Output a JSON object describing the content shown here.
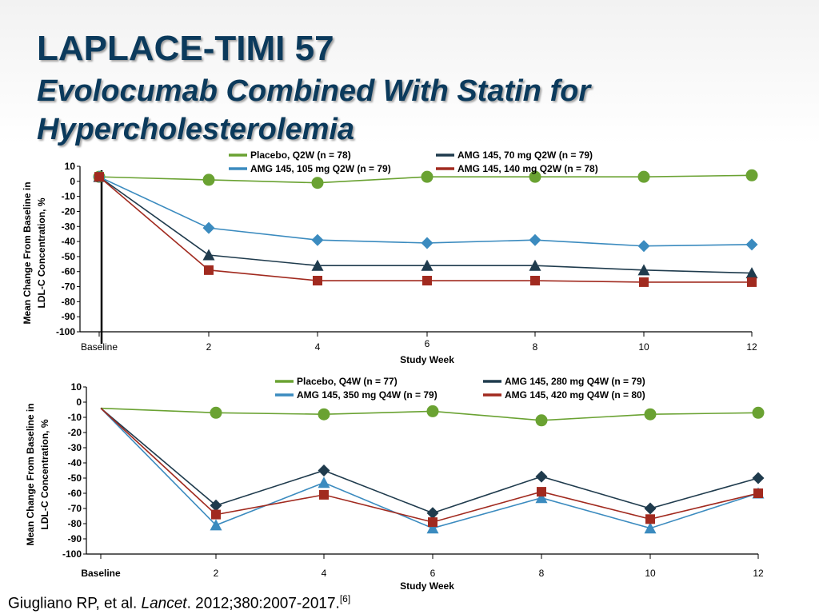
{
  "slide": {
    "title": "LAPLACE-TIMI 57",
    "subtitle": "Evolocumab Combined With Statin for Hypercholesterolemia",
    "citation_authors": "Giugliano RP, et al.",
    "citation_journal": "Lancet",
    "citation_details": ". 2012;380:2007-2017.",
    "citation_ref": "[6]"
  },
  "chart_data": [
    {
      "type": "line",
      "ylabel_line1": "Mean Change From Baseline in",
      "ylabel_line2": "LDL-C Concentration, %",
      "xlabel": "Study Week",
      "x": [
        0,
        2,
        4,
        6,
        8,
        10,
        12
      ],
      "x_tick_labels": [
        "Baseline",
        "2",
        "4",
        "6",
        "8",
        "10",
        "12"
      ],
      "y_ticks": [
        10,
        0,
        -10,
        -20,
        -30,
        -40,
        -50,
        -60,
        -70,
        -80,
        -90,
        -100
      ],
      "ylim": [
        -100,
        10
      ],
      "legend": [
        {
          "series": 0,
          "label": "Placebo, Q2W (n = 78)"
        },
        {
          "series": 1,
          "label": "AMG 145, 70 mg Q2W (n = 79)"
        },
        {
          "series": 2,
          "label": "AMG 145, 105 mg Q2W (n = 79)"
        },
        {
          "series": 3,
          "label": "AMG 145, 140 mg Q2W (n = 78)"
        }
      ],
      "series": [
        {
          "color": "#6aa232",
          "marker": "circle",
          "values": [
            3,
            1,
            -1,
            3,
            3,
            3,
            4
          ]
        },
        {
          "color": "#1f3b4d",
          "marker": "triangle",
          "values": [
            3,
            -49,
            -56,
            -56,
            -56,
            -59,
            -61
          ]
        },
        {
          "color": "#3b8bbf",
          "marker": "diamond",
          "values": [
            3,
            -31,
            -39,
            -41,
            -39,
            -43,
            -42
          ]
        },
        {
          "color": "#a12a1f",
          "marker": "square",
          "values": [
            3,
            -59,
            -66,
            -66,
            -66,
            -67,
            -67
          ]
        }
      ]
    },
    {
      "type": "line",
      "ylabel_line1": "Mean Change From Baseline in",
      "ylabel_line2": "LDL-C Concentration, %",
      "xlabel": "Study Week",
      "x": [
        0,
        2,
        4,
        6,
        8,
        10,
        12
      ],
      "x_tick_labels": [
        "Baseline",
        "2",
        "4",
        "6",
        "8",
        "10",
        "12"
      ],
      "y_ticks": [
        10,
        0,
        -10,
        -20,
        -30,
        -40,
        -50,
        -60,
        -70,
        -80,
        -90,
        -100
      ],
      "ylim": [
        -100,
        10
      ],
      "legend": [
        {
          "series": 0,
          "label": "Placebo, Q4W (n = 77)"
        },
        {
          "series": 1,
          "label": "AMG 145, 280 mg Q4W (n = 79)"
        },
        {
          "series": 2,
          "label": "AMG 145, 350 mg Q4W (n = 79)"
        },
        {
          "series": 3,
          "label": "AMG 145, 420 mg Q4W (n = 80)"
        }
      ],
      "series": [
        {
          "color": "#6aa232",
          "marker": "circle",
          "values": [
            -4,
            -7,
            -8,
            -6,
            -12,
            -8,
            -7
          ]
        },
        {
          "color": "#1f3b4d",
          "marker": "diamond",
          "values": [
            -4,
            -68,
            -45,
            -73,
            -49,
            -70,
            -50
          ]
        },
        {
          "color": "#3b8bbf",
          "marker": "triangle",
          "values": [
            -4,
            -81,
            -53,
            -83,
            -63,
            -83,
            -60
          ]
        },
        {
          "color": "#a12a1f",
          "marker": "square",
          "values": [
            -4,
            -74,
            -61,
            -79,
            -59,
            -77,
            -60
          ]
        }
      ]
    }
  ]
}
